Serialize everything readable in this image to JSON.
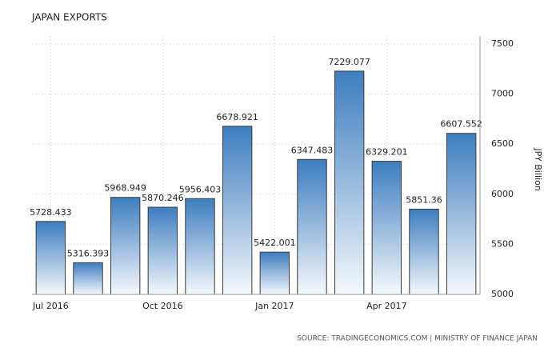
{
  "chart_data": {
    "type": "bar",
    "title": "JAPAN EXPORTS",
    "categories": [
      "Jul 2016",
      null,
      null,
      "Oct 2016",
      null,
      null,
      "Jan 2017",
      null,
      null,
      "Apr 2017",
      null,
      null
    ],
    "values": [
      5728.433,
      5316.393,
      5968.949,
      5870.246,
      5956.403,
      6678.921,
      5422.001,
      6347.483,
      7229.077,
      6329.201,
      5851.36,
      6607.552
    ],
    "color": "#3d7dbf",
    "ylim": [
      5000,
      7500
    ],
    "yticks": [
      5000,
      5500,
      6000,
      6500,
      7000,
      7500
    ],
    "y_axis_label": "JPY Billion",
    "y_axis_side": "right",
    "grid": true,
    "source": "SOURCE: TRADINGECONOMICS.COM | MINISTRY OF FINANCE JAPAN"
  }
}
